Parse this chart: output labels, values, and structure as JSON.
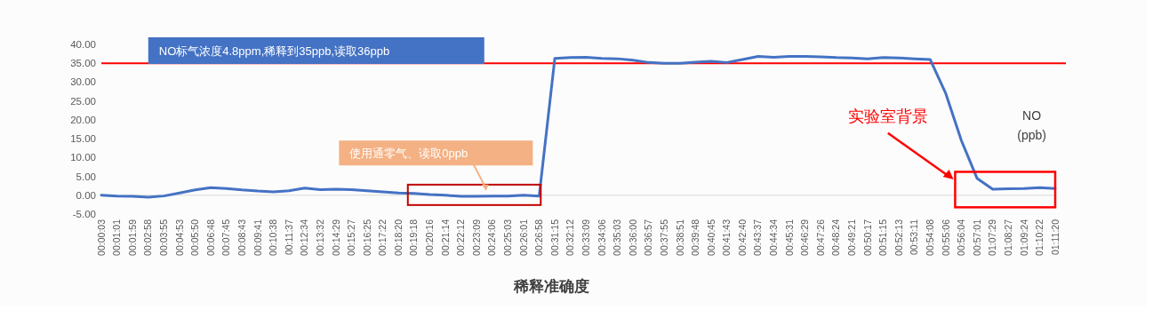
{
  "chart_data": {
    "type": "line",
    "title": "稀释准确度",
    "categories": [
      "00:00:03",
      "00:01:01",
      "00:01:59",
      "00:02:58",
      "00:03:55",
      "00:04:53",
      "00:05:50",
      "00:06:48",
      "00:07:45",
      "00:08:43",
      "00:09:41",
      "00:10:38",
      "00:11:37",
      "00:12:34",
      "00:13:32",
      "00:14:29",
      "00:15:27",
      "00:16:25",
      "00:17:22",
      "00:18:20",
      "00:19:18",
      "00:20:16",
      "00:21:14",
      "00:22:12",
      "00:23:09",
      "00:24:06",
      "00:25:03",
      "00:26:01",
      "00:26:58",
      "00:31:15",
      "00:32:12",
      "00:33:09",
      "00:34:06",
      "00:35:03",
      "00:36:00",
      "00:36:57",
      "00:37:55",
      "00:38:51",
      "00:39:48",
      "00:40:45",
      "00:41:43",
      "00:42:40",
      "00:43:37",
      "00:44:34",
      "00:45:31",
      "00:46:29",
      "00:47:26",
      "00:48:24",
      "00:49:21",
      "00:50:17",
      "00:51:15",
      "00:52:13",
      "00:53:11",
      "00:54:08",
      "00:55:06",
      "00:56:04",
      "00:57:01",
      "01:07:29",
      "01:08:27",
      "01:09:24",
      "01:10:22",
      "01:11:20"
    ],
    "series": [
      {
        "color": "#4472c4",
        "values": [
          0.0,
          -0.2,
          -0.3,
          -0.5,
          -0.2,
          0.6,
          1.4,
          2.0,
          1.8,
          1.4,
          1.1,
          0.9,
          1.2,
          1.9,
          1.5,
          1.6,
          1.5,
          1.2,
          0.9,
          0.6,
          0.5,
          0.2,
          0.0,
          -0.3,
          -0.3,
          -0.2,
          -0.2,
          0.0,
          -0.2,
          36.3,
          36.5,
          36.6,
          36.3,
          36.2,
          35.8,
          35.2,
          35.0,
          35.0,
          35.3,
          35.5,
          35.2,
          36.0,
          36.8,
          36.6,
          36.8,
          36.8,
          36.7,
          36.5,
          36.4,
          36.2,
          36.5,
          36.4,
          36.2,
          36.0,
          27.0,
          14.5,
          4.5,
          1.6,
          1.7,
          1.8,
          2.0,
          1.8
        ]
      }
    ],
    "ylabel": "NO\n(ppb)",
    "ylim": [
      -5,
      40
    ],
    "yticks": [
      {
        "value": -5,
        "label": "-5.00"
      },
      {
        "value": 0,
        "label": "0.00"
      },
      {
        "value": 5,
        "label": "5.00"
      },
      {
        "value": 10,
        "label": "10.00"
      },
      {
        "value": 15,
        "label": "15.00"
      },
      {
        "value": 20,
        "label": "20.00"
      },
      {
        "value": 25,
        "label": "25.00"
      },
      {
        "value": 30,
        "label": "30.00"
      },
      {
        "value": 35,
        "label": "35.00"
      },
      {
        "value": 40,
        "label": "40.00"
      }
    ],
    "ref_lines": [
      {
        "axis": "y",
        "value": 35,
        "label": "NO标气浓度4.8ppm,稀释到35ppb,读取36ppb",
        "color": "#ff0000"
      }
    ],
    "annotations": [
      "使用通零气、读取0ppb",
      "实验室背景"
    ],
    "marker": "none",
    "line_style": "solid"
  }
}
